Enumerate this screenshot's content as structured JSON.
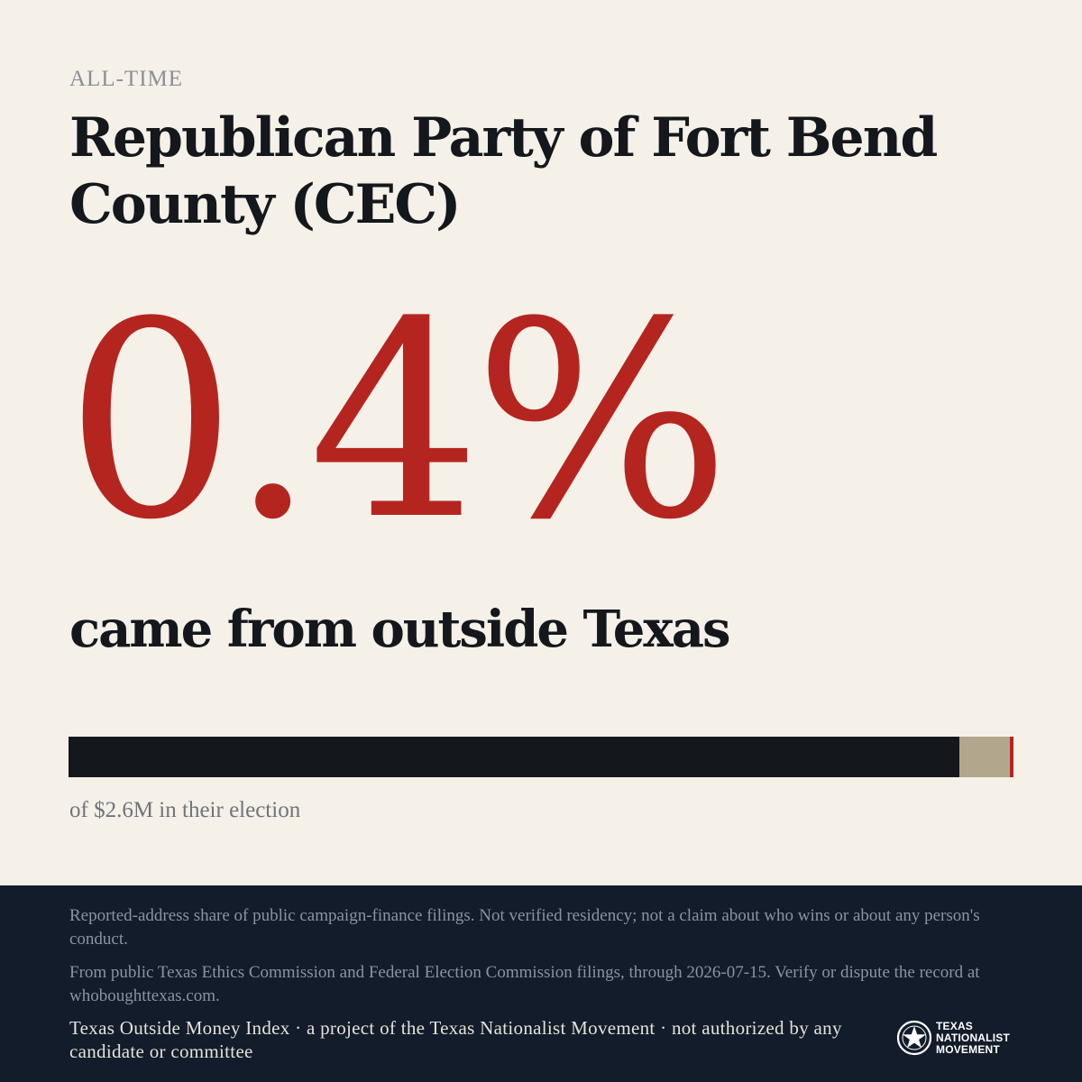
{
  "eyebrow": "ALL-TIME",
  "title": "Republican Party of Fort Bend County (CEC)",
  "headline_value": "0.4%",
  "headline_caption": "came from outside Texas",
  "bar": {
    "outside_share_percent": 0.4,
    "unknown_share_percent": 5.3,
    "colors": {
      "in_state": "#14181d",
      "unknown": "#b2a68c",
      "outside": "#b52520"
    }
  },
  "bar_caption": "of $2.6M in their election",
  "footer": {
    "note": "Reported-address share of public campaign-finance filings. Not verified residency; not a claim about who wins or about any person's conduct.",
    "source": "From public Texas Ethics Commission and Federal Election Commission filings, through 2026-07-15. Verify or dispute the record at whoboughttexas.com.",
    "credit": "Texas Outside Money Index · a project of the Texas Nationalist Movement · not authorized by any candidate or committee"
  },
  "logo": {
    "icon": "star-seal-icon",
    "lines": [
      "TEXAS",
      "NATIONALIST",
      "MOVEMENT"
    ]
  },
  "colors": {
    "background": "#f5f0e8",
    "accent": "#b52520",
    "footer_bg": "#131c2a"
  }
}
